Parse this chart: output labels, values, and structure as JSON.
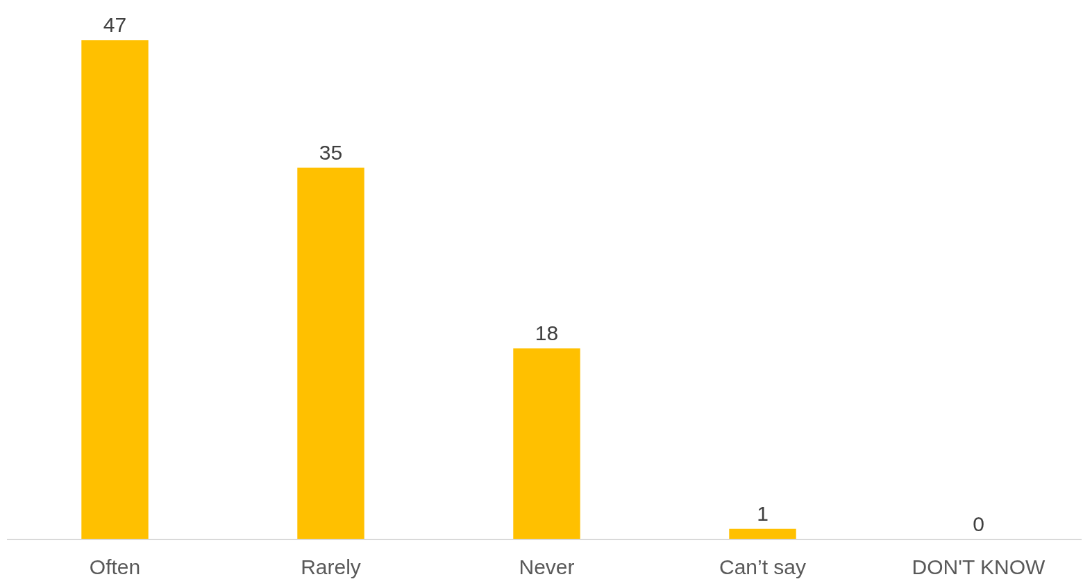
{
  "chart_data": {
    "type": "bar",
    "categories": [
      "Often",
      "Rarely",
      "Never",
      "Can’t say",
      "DON'T KNOW"
    ],
    "values": [
      47,
      35,
      18,
      1,
      0
    ],
    "color": "#ffc000",
    "data_labels": true,
    "tick_labels": "x"
  }
}
